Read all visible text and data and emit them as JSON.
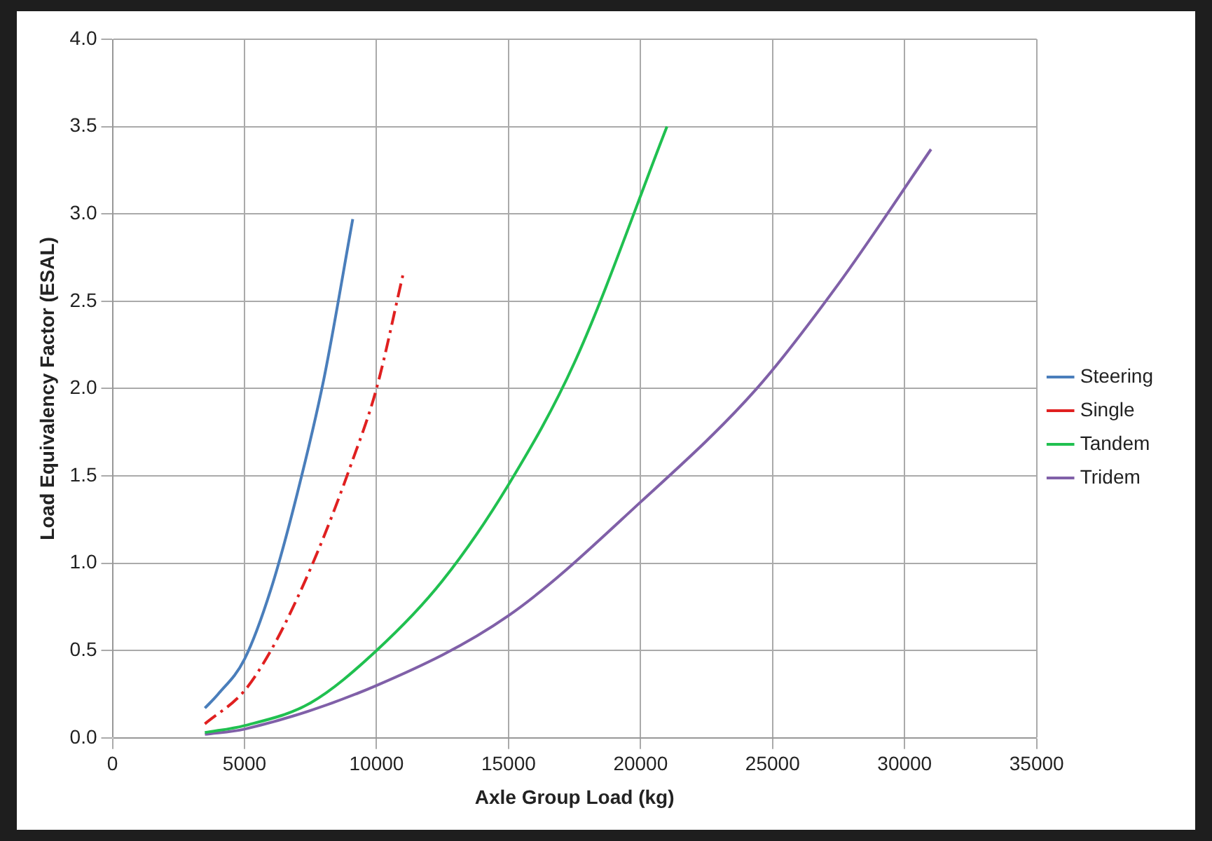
{
  "chart_data": {
    "type": "line",
    "xlabel": "Axle Group Load (kg)",
    "ylabel": "Load Equivalency Factor (ESAL)",
    "xlim": [
      0,
      35000
    ],
    "xticks": [
      0,
      5000,
      10000,
      15000,
      20000,
      25000,
      30000,
      35000
    ],
    "ylim": [
      0,
      4
    ],
    "yticks": [
      {
        "value": 0,
        "label": "0.0"
      },
      {
        "value": 0.5,
        "label": "0.5"
      },
      {
        "value": 1,
        "label": "1.0"
      },
      {
        "value": 1.5,
        "label": "1.5"
      },
      {
        "value": 2,
        "label": "2.0"
      },
      {
        "value": 2.5,
        "label": "2.5"
      },
      {
        "value": 3,
        "label": "3.0"
      },
      {
        "value": 3.5,
        "label": "3.5"
      },
      {
        "value": 4,
        "label": "4.0"
      }
    ],
    "grid": true,
    "legend": "right",
    "marker": "none",
    "series": [
      {
        "name": "Steering",
        "color": "#4a7ebb",
        "line_style": "solid",
        "x": [
          3500,
          4000,
          5000,
          6000,
          7000,
          8000,
          9100
        ],
        "values": [
          0.17,
          0.25,
          0.45,
          0.85,
          1.4,
          2.05,
          2.97
        ]
      },
      {
        "name": "Single",
        "color": "#e02020",
        "line_style": "dashed",
        "x": [
          3500,
          5000,
          6000,
          7000,
          8000,
          9000,
          10000,
          11000
        ],
        "values": [
          0.08,
          0.27,
          0.5,
          0.8,
          1.15,
          1.55,
          2.0,
          2.65
        ]
      },
      {
        "name": "Tandem",
        "color": "#20c050",
        "line_style": "solid",
        "x": [
          3500,
          5000,
          7500,
          10000,
          12500,
          15000,
          17500,
          21000
        ],
        "values": [
          0.03,
          0.07,
          0.2,
          0.5,
          0.9,
          1.45,
          2.15,
          3.5
        ]
      },
      {
        "name": "Tridem",
        "color": "#8060a8",
        "line_style": "solid",
        "x": [
          3500,
          5000,
          10000,
          15000,
          20000,
          24400,
          27500,
          31000
        ],
        "values": [
          0.02,
          0.05,
          0.3,
          0.7,
          1.35,
          2.0,
          2.6,
          3.37
        ]
      }
    ]
  }
}
